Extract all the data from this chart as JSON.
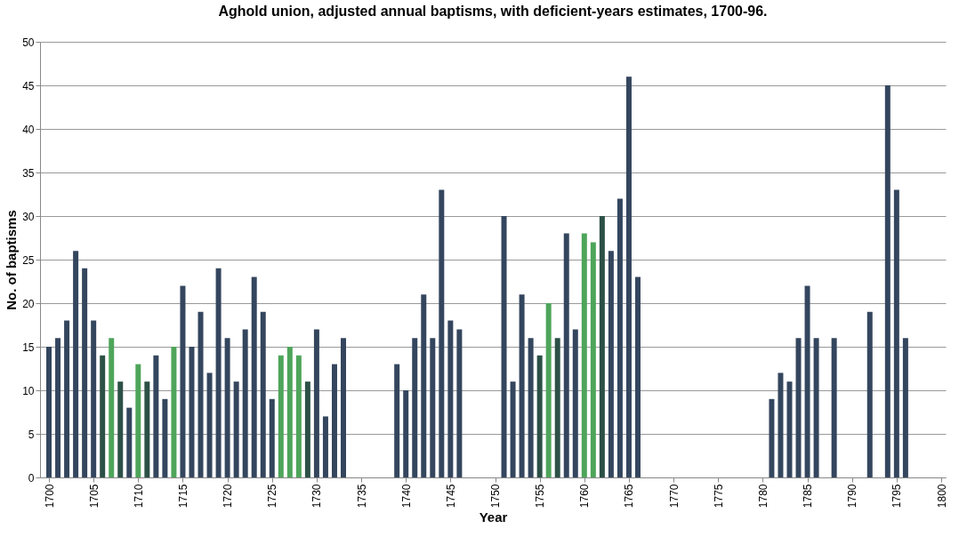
{
  "chart_data": {
    "type": "bar",
    "title": "Aghold union, adjusted annual baptisms, with deficient-years estimates, 1700-96.",
    "xlabel": "Year",
    "ylabel": "No. of baptisms",
    "x": [
      1700,
      1701,
      1702,
      1703,
      1704,
      1705,
      1706,
      1707,
      1708,
      1709,
      1710,
      1711,
      1712,
      1713,
      1714,
      1715,
      1716,
      1717,
      1718,
      1719,
      1720,
      1721,
      1722,
      1723,
      1724,
      1725,
      1726,
      1727,
      1728,
      1729,
      1730,
      1731,
      1732,
      1733,
      1739,
      1740,
      1741,
      1742,
      1743,
      1744,
      1745,
      1746,
      1751,
      1752,
      1753,
      1754,
      1755,
      1756,
      1757,
      1758,
      1759,
      1760,
      1761,
      1762,
      1763,
      1764,
      1765,
      1766,
      1781,
      1782,
      1783,
      1784,
      1785,
      1786,
      1788,
      1792,
      1794,
      1795,
      1796
    ],
    "values": [
      15,
      16,
      18,
      26,
      24,
      18,
      14,
      16,
      11,
      8,
      13,
      11,
      14,
      9,
      15,
      22,
      15,
      19,
      12,
      24,
      16,
      11,
      17,
      23,
      19,
      9,
      14,
      15,
      14,
      11,
      17,
      7,
      13,
      16,
      13,
      10,
      16,
      21,
      16,
      33,
      18,
      17,
      30,
      11,
      21,
      16,
      14,
      20,
      16,
      28,
      17,
      28,
      27,
      30,
      26,
      32,
      46,
      23,
      9,
      12,
      11,
      16,
      22,
      16,
      16,
      19,
      45,
      33,
      16
    ],
    "colors": [
      "#34465e",
      "#34465e",
      "#34465e",
      "#34465e",
      "#34465e",
      "#34465e",
      "#2c5046",
      "#4ea55a",
      "#2c5046",
      "#34465e",
      "#4ea55a",
      "#2c5046",
      "#34465e",
      "#34465e",
      "#4ea55a",
      "#34465e",
      "#34465e",
      "#34465e",
      "#34465e",
      "#34465e",
      "#34465e",
      "#34465e",
      "#34465e",
      "#34465e",
      "#34465e",
      "#34465e",
      "#4ea55a",
      "#4ea55a",
      "#4ea55a",
      "#2c5046",
      "#34465e",
      "#34465e",
      "#34465e",
      "#34465e",
      "#34465e",
      "#34465e",
      "#34465e",
      "#34465e",
      "#34465e",
      "#34465e",
      "#34465e",
      "#34465e",
      "#34465e",
      "#34465e",
      "#34465e",
      "#34465e",
      "#2c5046",
      "#4ea55a",
      "#2c5046",
      "#34465e",
      "#34465e",
      "#4ea55a",
      "#4ea55a",
      "#2c5046",
      "#34465e",
      "#34465e",
      "#34465e",
      "#34465e",
      "#34465e",
      "#34465e",
      "#34465e",
      "#34465e",
      "#34465e",
      "#34465e",
      "#34465e",
      "#34465e",
      "#34465e",
      "#34465e",
      "#34465e"
    ],
    "xlim": [
      1699.5,
      1800
    ],
    "xticks": [
      1700,
      1705,
      1710,
      1715,
      1720,
      1725,
      1730,
      1735,
      1740,
      1745,
      1750,
      1755,
      1760,
      1765,
      1770,
      1775,
      1780,
      1785,
      1790,
      1795,
      1800
    ],
    "ylim": [
      0,
      50
    ],
    "yticks": [
      0,
      5,
      10,
      15,
      20,
      25,
      30,
      35,
      40,
      45,
      50
    ],
    "grid": "y"
  }
}
